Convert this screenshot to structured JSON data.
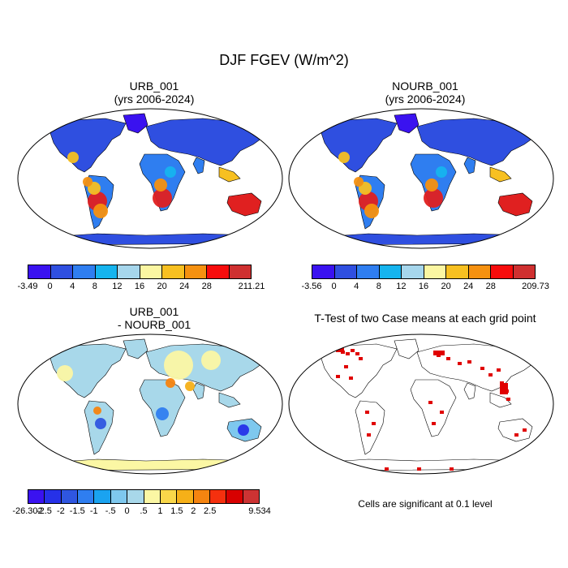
{
  "figure": {
    "title": "DJF FGEV (W/m^2)"
  },
  "panels": [
    {
      "id": "urb",
      "title_line1": "URB_001",
      "title_line2": "(yrs 2006-2024)"
    },
    {
      "id": "nourb",
      "title_line1": "NOURB_001",
      "title_line2": "(yrs 2006-2024)"
    },
    {
      "id": "diff",
      "title_line1": "URB_001",
      "title_line2": "- NOURB_001"
    },
    {
      "id": "ttest",
      "title_line1": "T-Test of two Case means at each grid point",
      "title_line2": ""
    }
  ],
  "colorbars": {
    "urb": {
      "labels": [
        "-3.49",
        "0",
        "4",
        "8",
        "12",
        "16",
        "20",
        "24",
        "28",
        "211.21"
      ],
      "colors": [
        "#3a12f0",
        "#2f4fe0",
        "#2f7ef0",
        "#16b4ee",
        "#a6d6ec",
        "#fbf6a2",
        "#f7c021",
        "#f59110",
        "#f70c0c",
        "#cf3030"
      ]
    },
    "nourb": {
      "labels": [
        "-3.56",
        "0",
        "4",
        "8",
        "12",
        "16",
        "20",
        "24",
        "28",
        "209.73"
      ],
      "colors": [
        "#3a12f0",
        "#2f4fe0",
        "#2f7ef0",
        "#16b4ee",
        "#a6d6ec",
        "#fbf6a2",
        "#f7c021",
        "#f59110",
        "#f70c0c",
        "#cf3030"
      ]
    },
    "diff": {
      "labels": [
        "-26.302",
        "-2.5",
        "-2",
        "-1.5",
        "-1",
        "-.5",
        "0",
        ".5",
        "1",
        "1.5",
        "2",
        "2.5",
        "9.534"
      ],
      "colors": [
        "#3a12f0",
        "#2631e8",
        "#2f56e0",
        "#2f7ef0",
        "#1aa3f0",
        "#7ec8ee",
        "#a8d8ea",
        "#fbf7a4",
        "#f9d74a",
        "#f6b018",
        "#f58410",
        "#f5300e",
        "#d80000",
        "#cc3333"
      ]
    }
  },
  "footer_note": "Cells are significant at 0.1 level",
  "colors": {
    "ocean": "#ffffff",
    "outline": "#000000",
    "signif": "#e00000"
  }
}
